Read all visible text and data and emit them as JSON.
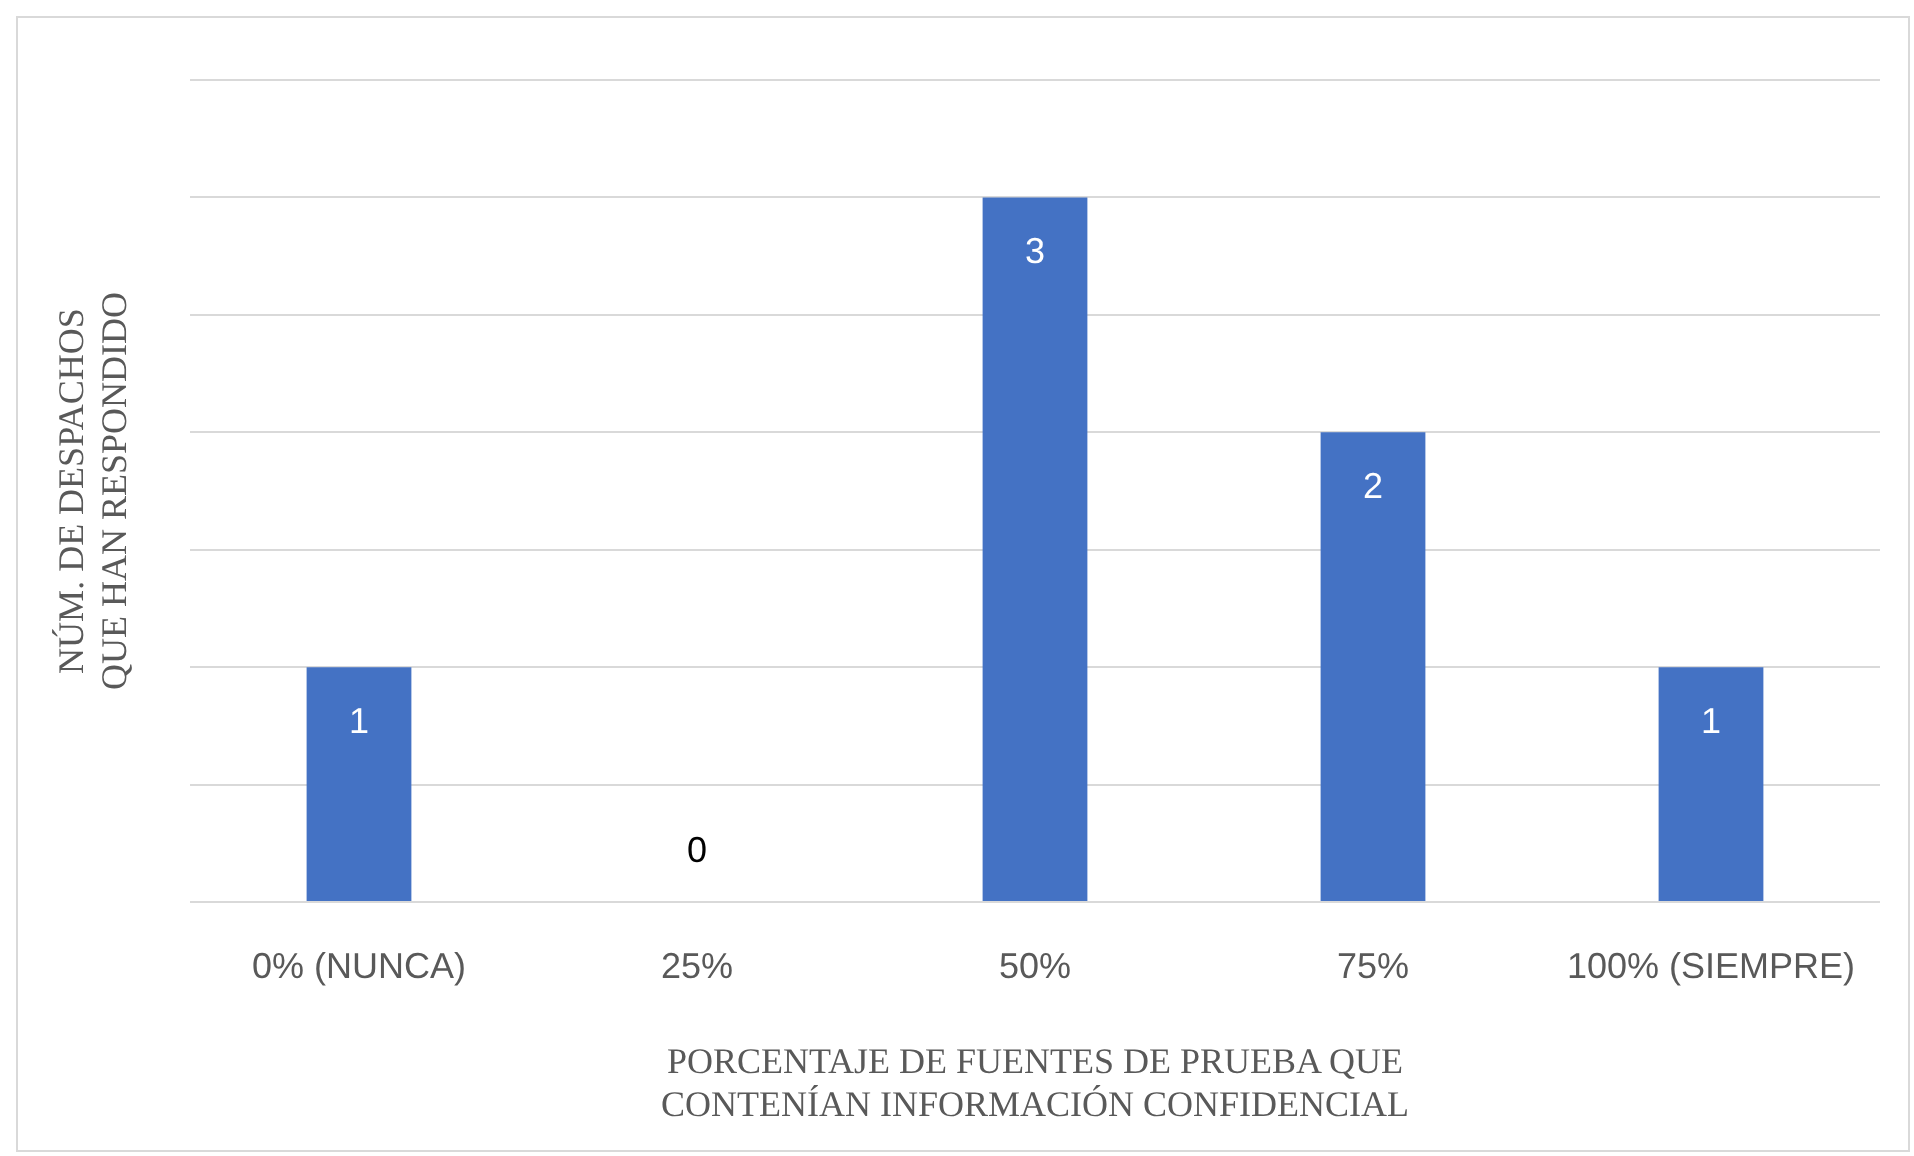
{
  "chart_data": {
    "type": "bar",
    "xlabel": "PORCENTAJE DE FUENTES DE PRUEBA QUE\nCONTENÍAN INFORMACIÓN CONFIDENCIAL",
    "ylabel": "NÚM. DE DESPACHOS\nQUE HAN RESPONDIDO",
    "categories": [
      "0% (NUNCA)",
      "25%",
      "50%",
      "75%",
      "100% (SIEMPRE)"
    ],
    "values": [
      1,
      0,
      3,
      2,
      1
    ],
    "color": "#4472c4",
    "ylim": [
      0,
      3.5
    ],
    "yticks": [
      {
        "value": 0,
        "label": null
      },
      {
        "value": 0.5,
        "label": null
      },
      {
        "value": 1,
        "label": null
      },
      {
        "value": 1.5,
        "label": null
      },
      {
        "value": 2,
        "label": null
      },
      {
        "value": 2.5,
        "label": null
      },
      {
        "value": 3,
        "label": null
      },
      {
        "value": 3.5,
        "label": null
      }
    ],
    "tick_labels": "x",
    "grid": "y",
    "data_labels": true,
    "legend": false
  }
}
